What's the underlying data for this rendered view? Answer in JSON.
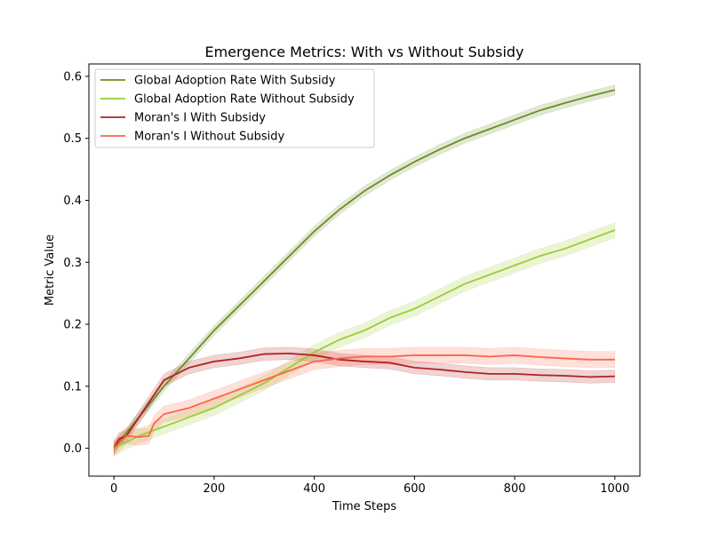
{
  "chart_data": {
    "type": "line",
    "title": "Emergence Metrics: With vs Without Subsidy",
    "xlabel": "Time Steps",
    "ylabel": "Metric Value",
    "xlim": [
      -50,
      1050
    ],
    "ylim": [
      -0.045,
      0.62
    ],
    "xticks": [
      0,
      200,
      400,
      600,
      800,
      1000
    ],
    "yticks": [
      0.0,
      0.1,
      0.2,
      0.3,
      0.4,
      0.5,
      0.6
    ],
    "xtick_labels": [
      "0",
      "200",
      "400",
      "600",
      "800",
      "1000"
    ],
    "ytick_labels": [
      "0.0",
      "0.1",
      "0.2",
      "0.3",
      "0.4",
      "0.5",
      "0.6"
    ],
    "grid": false,
    "legend_position": "top-left",
    "series": [
      {
        "name": "Global Adoption Rate With Subsidy",
        "color": "#6b8e23",
        "band": 0.008,
        "x": [
          0,
          50,
          100,
          150,
          200,
          250,
          300,
          350,
          400,
          450,
          500,
          550,
          600,
          650,
          700,
          750,
          800,
          850,
          900,
          950,
          1000
        ],
        "y": [
          0.0,
          0.05,
          0.1,
          0.145,
          0.19,
          0.23,
          0.27,
          0.31,
          0.35,
          0.385,
          0.415,
          0.44,
          0.462,
          0.482,
          0.5,
          0.515,
          0.53,
          0.545,
          0.557,
          0.568,
          0.578
        ]
      },
      {
        "name": "Global Adoption Rate Without Subsidy",
        "color": "#9acd32",
        "band": 0.012,
        "x": [
          0,
          50,
          100,
          150,
          200,
          250,
          300,
          350,
          400,
          450,
          500,
          550,
          600,
          650,
          700,
          750,
          800,
          850,
          900,
          950,
          1000
        ],
        "y": [
          0.0,
          0.02,
          0.035,
          0.05,
          0.065,
          0.085,
          0.105,
          0.13,
          0.155,
          0.175,
          0.19,
          0.21,
          0.225,
          0.245,
          0.265,
          0.28,
          0.295,
          0.31,
          0.322,
          0.337,
          0.352
        ]
      },
      {
        "name": "Moran's I With Subsidy",
        "color": "#b22222",
        "band": 0.01,
        "x": [
          0,
          10,
          25,
          50,
          75,
          100,
          125,
          150,
          175,
          200,
          250,
          300,
          350,
          400,
          450,
          500,
          550,
          600,
          650,
          700,
          750,
          800,
          850,
          900,
          950,
          1000
        ],
        "y": [
          0.0,
          0.015,
          0.02,
          0.05,
          0.08,
          0.11,
          0.12,
          0.13,
          0.135,
          0.14,
          0.145,
          0.152,
          0.153,
          0.15,
          0.143,
          0.14,
          0.138,
          0.13,
          0.127,
          0.123,
          0.12,
          0.12,
          0.118,
          0.117,
          0.115,
          0.116
        ]
      },
      {
        "name": "Moran's I Without Subsidy",
        "color": "#ff6347",
        "band": 0.013,
        "x": [
          0,
          25,
          50,
          70,
          80,
          100,
          150,
          200,
          250,
          300,
          350,
          400,
          450,
          500,
          550,
          600,
          650,
          700,
          750,
          800,
          850,
          900,
          950,
          1000
        ],
        "y": [
          0.0,
          0.02,
          0.018,
          0.02,
          0.04,
          0.055,
          0.065,
          0.08,
          0.095,
          0.11,
          0.125,
          0.14,
          0.145,
          0.148,
          0.148,
          0.15,
          0.15,
          0.15,
          0.148,
          0.15,
          0.147,
          0.145,
          0.143,
          0.143
        ]
      }
    ]
  }
}
